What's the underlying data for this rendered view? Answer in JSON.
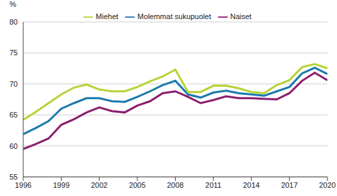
{
  "chart_data": {
    "type": "line",
    "y_label": "%",
    "x": [
      1996,
      1997,
      1998,
      1999,
      2000,
      2001,
      2002,
      2003,
      2004,
      2005,
      2006,
      2007,
      2008,
      2009,
      2010,
      2011,
      2012,
      2013,
      2014,
      2015,
      2016,
      2017,
      2018,
      2019,
      2020
    ],
    "series": [
      {
        "name": "Molemmat sukupuolet",
        "color": "#1a79ad",
        "values": [
          61.9,
          62.9,
          64.0,
          66.0,
          66.9,
          67.7,
          67.7,
          67.2,
          67.1,
          67.9,
          68.8,
          69.8,
          70.5,
          68.3,
          67.8,
          68.6,
          68.9,
          68.5,
          68.3,
          68.1,
          68.8,
          69.5,
          71.7,
          72.6,
          71.6
        ]
      },
      {
        "name": "Miehet",
        "color": "#b5d334",
        "values": [
          64.2,
          65.5,
          66.9,
          68.3,
          69.4,
          69.9,
          69.1,
          68.8,
          68.8,
          69.5,
          70.4,
          71.2,
          72.3,
          68.7,
          68.7,
          69.7,
          69.7,
          69.3,
          68.7,
          68.5,
          69.8,
          70.6,
          72.7,
          73.2,
          72.5
        ]
      },
      {
        "name": "Naiset",
        "color": "#8c1d6e",
        "values": [
          59.5,
          60.3,
          61.2,
          63.4,
          64.3,
          65.4,
          66.2,
          65.6,
          65.4,
          66.5,
          67.2,
          68.5,
          68.8,
          67.9,
          66.9,
          67.4,
          68.0,
          67.7,
          67.7,
          67.6,
          67.5,
          68.5,
          70.5,
          71.8,
          70.6
        ]
      }
    ],
    "xlim": [
      1996,
      2020
    ],
    "xticks": [
      1996,
      1999,
      2002,
      2005,
      2008,
      2011,
      2014,
      2017,
      2020
    ],
    "ylim": [
      55,
      80
    ],
    "yticks": [
      55,
      60,
      65,
      70,
      75,
      80
    ],
    "grid": true,
    "legend": "top"
  }
}
